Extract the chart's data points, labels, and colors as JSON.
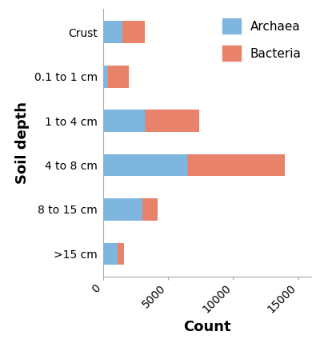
{
  "categories": [
    "Crust",
    "0.1 to 1 cm",
    "1 to 4 cm",
    "4 to 8 cm",
    "8 to 15 cm",
    ">15 cm"
  ],
  "archaea": [
    1500,
    400,
    3200,
    6500,
    3000,
    1100
  ],
  "bacteria": [
    1700,
    1600,
    4200,
    7500,
    1200,
    500
  ],
  "archaea_color": "#7EB6E0",
  "bacteria_color": "#E8826A",
  "xlabel": "Count",
  "ylabel": "Soil depth",
  "xlim": [
    0,
    16000
  ],
  "xticks": [
    0,
    5000,
    10000,
    15000
  ],
  "xtick_labels": [
    "0",
    "5000",
    "10000",
    "15000"
  ],
  "legend_labels": [
    "Archaea",
    "Bacteria"
  ],
  "figsize": [
    4.0,
    4.29
  ],
  "dpi": 100,
  "bar_height": 0.5,
  "ylabel_fontsize": 13,
  "xlabel_fontsize": 13,
  "tick_fontsize": 10,
  "legend_fontsize": 11
}
